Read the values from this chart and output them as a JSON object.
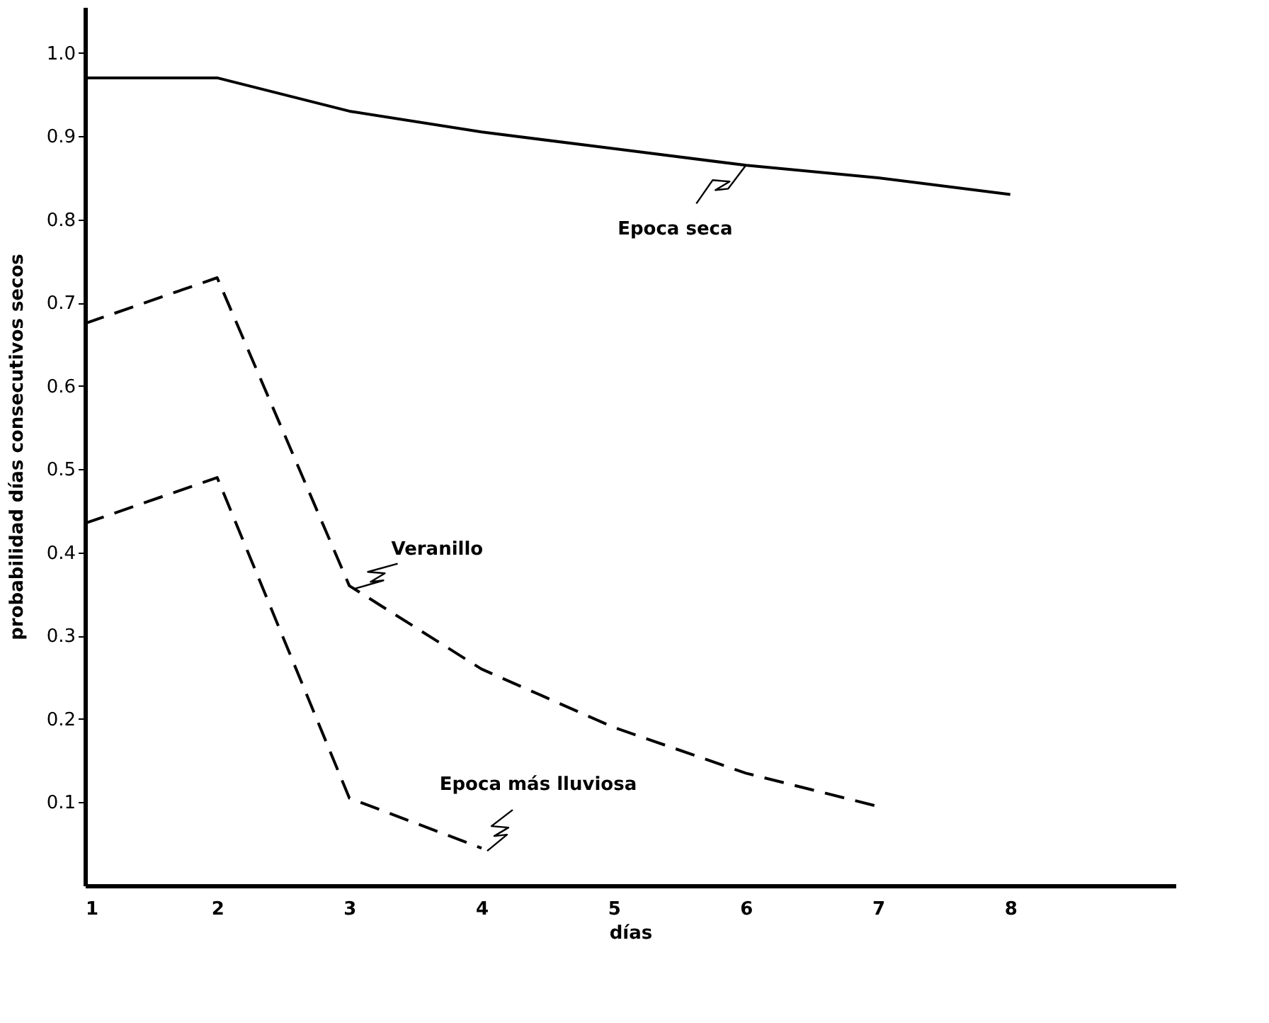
{
  "chart_data": {
    "type": "line",
    "xlabel": "días",
    "ylabel": "probabilidad días consecutivos secos",
    "x": [
      1,
      2,
      3,
      4,
      5,
      6,
      7,
      8
    ],
    "series": [
      {
        "name": "Epoca seca",
        "color": "#000000",
        "line_style": "solid",
        "values": [
          0.97,
          0.97,
          0.93,
          0.905,
          0.885,
          0.865,
          0.85,
          0.83
        ]
      },
      {
        "name": "Veranillo",
        "color": "#000000",
        "line_style": "dashed",
        "values": [
          0.675,
          0.73,
          0.36,
          0.26,
          0.19,
          0.135,
          0.095,
          null
        ]
      },
      {
        "name": "Epoca más lluviosa",
        "color": "#000000",
        "line_style": "dashed",
        "values": [
          0.435,
          0.49,
          0.105,
          0.045,
          null,
          null,
          null,
          null
        ]
      }
    ],
    "xlim": [
      1,
      9.25
    ],
    "xticks": [
      1,
      2,
      3,
      4,
      5,
      6,
      7,
      8
    ],
    "ylim": [
      0,
      1.055
    ],
    "yticks": [
      0.1,
      0.2,
      0.3,
      0.4,
      0.5,
      0.6,
      0.7,
      0.8,
      0.9,
      {
        "value": 1,
        "label": "1.0"
      }
    ],
    "grid": false,
    "marker": "none"
  }
}
